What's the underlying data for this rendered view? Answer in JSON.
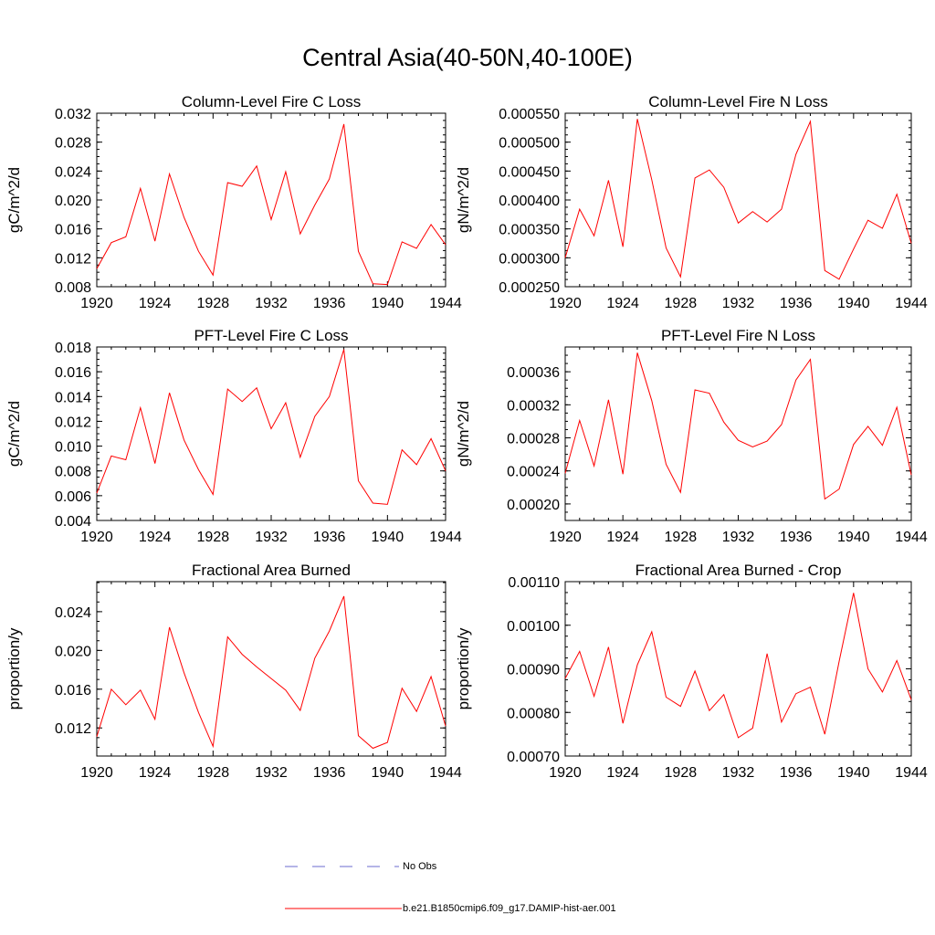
{
  "title": "Central Asia(40-50N,40-100E)",
  "line_color": "#ff0000",
  "legend": {
    "items": [
      {
        "label": "No Obs",
        "style": "dashed",
        "color": "#6b6bcf"
      },
      {
        "label": "b.e21.B1850cmip6.f09_g17.DAMIP-hist-aer.001",
        "style": "solid",
        "color": "#ff0000"
      }
    ]
  },
  "chart_data": [
    {
      "type": "line",
      "title": "Column-Level Fire C Loss",
      "ylabel": "gC/m^2/d",
      "x": [
        1920,
        1921,
        1922,
        1923,
        1924,
        1925,
        1926,
        1927,
        1928,
        1929,
        1930,
        1931,
        1932,
        1933,
        1934,
        1935,
        1936,
        1937,
        1938,
        1939,
        1940,
        1941,
        1942,
        1943,
        1944
      ],
      "values": [
        0.0105,
        0.0141,
        0.0149,
        0.0216,
        0.0143,
        0.0236,
        0.0176,
        0.0129,
        0.0096,
        0.0224,
        0.0219,
        0.0247,
        0.0173,
        0.0239,
        0.0153,
        0.0193,
        0.0229,
        0.0305,
        0.0129,
        0.0084,
        0.0083,
        0.0142,
        0.0133,
        0.0166,
        0.0138
      ],
      "xlim": [
        1920,
        1944
      ],
      "ylim": [
        0.008,
        0.032
      ],
      "xticks": [
        "1920",
        "1924",
        "1928",
        "1932",
        "1936",
        "1940",
        "1944"
      ],
      "yticks": [
        "0.008",
        "0.012",
        "0.016",
        "0.020",
        "0.024",
        "0.028",
        "0.032"
      ],
      "ytick_values": [
        0.008,
        0.012,
        0.016,
        0.02,
        0.024,
        0.028,
        0.032
      ]
    },
    {
      "type": "line",
      "title": "Column-Level Fire N Loss",
      "ylabel": "gN/m^2/d",
      "x": [
        1920,
        1921,
        1922,
        1923,
        1924,
        1925,
        1926,
        1927,
        1928,
        1929,
        1930,
        1931,
        1932,
        1933,
        1934,
        1935,
        1936,
        1937,
        1938,
        1939,
        1940,
        1941,
        1942,
        1943,
        1944
      ],
      "values": [
        0.0003,
        0.000384,
        0.000338,
        0.000434,
        0.000319,
        0.00054,
        0.000435,
        0.000317,
        0.000267,
        0.000438,
        0.000452,
        0.000422,
        0.00036,
        0.00038,
        0.000362,
        0.000384,
        0.000479,
        0.000536,
        0.000278,
        0.000263,
        0.000315,
        0.000365,
        0.000351,
        0.00041,
        0.000325
      ],
      "xlim": [
        1920,
        1944
      ],
      "ylim": [
        0.00025,
        0.00055
      ],
      "xticks": [
        "1920",
        "1924",
        "1928",
        "1932",
        "1936",
        "1940",
        "1944"
      ],
      "yticks": [
        "0.000250",
        "0.000300",
        "0.000350",
        "0.000400",
        "0.000450",
        "0.000500",
        "0.000550"
      ],
      "ytick_values": [
        0.00025,
        0.0003,
        0.00035,
        0.0004,
        0.00045,
        0.0005,
        0.00055
      ]
    },
    {
      "type": "line",
      "title": "PFT-Level Fire C Loss",
      "ylabel": "gC/m^2/d",
      "x": [
        1920,
        1921,
        1922,
        1923,
        1924,
        1925,
        1926,
        1927,
        1928,
        1929,
        1930,
        1931,
        1932,
        1933,
        1934,
        1935,
        1936,
        1937,
        1938,
        1939,
        1940,
        1941,
        1942,
        1943,
        1944
      ],
      "values": [
        0.0062,
        0.0092,
        0.0089,
        0.0131,
        0.0086,
        0.0143,
        0.0105,
        0.0081,
        0.0061,
        0.0146,
        0.0136,
        0.0147,
        0.0114,
        0.0135,
        0.0091,
        0.0124,
        0.014,
        0.0178,
        0.0072,
        0.0054,
        0.0053,
        0.0097,
        0.0085,
        0.0106,
        0.008
      ],
      "xlim": [
        1920,
        1944
      ],
      "ylim": [
        0.004,
        0.018
      ],
      "xticks": [
        "1920",
        "1924",
        "1928",
        "1932",
        "1936",
        "1940",
        "1944"
      ],
      "yticks": [
        "0.004",
        "0.006",
        "0.008",
        "0.010",
        "0.012",
        "0.014",
        "0.016",
        "0.018"
      ],
      "ytick_values": [
        0.004,
        0.006,
        0.008,
        0.01,
        0.012,
        0.014,
        0.016,
        0.018
      ]
    },
    {
      "type": "line",
      "title": "PFT-Level Fire N Loss",
      "ylabel": "gN/m^2/d",
      "x": [
        1920,
        1921,
        1922,
        1923,
        1924,
        1925,
        1926,
        1927,
        1928,
        1929,
        1930,
        1931,
        1932,
        1933,
        1934,
        1935,
        1936,
        1937,
        1938,
        1939,
        1940,
        1941,
        1942,
        1943,
        1944
      ],
      "values": [
        0.000237,
        0.000301,
        0.000246,
        0.000326,
        0.000236,
        0.000383,
        0.000325,
        0.000248,
        0.000214,
        0.000338,
        0.000334,
        0.000299,
        0.000277,
        0.000269,
        0.000276,
        0.000296,
        0.00035,
        0.000375,
        0.000206,
        0.000218,
        0.000272,
        0.000294,
        0.000271,
        0.000317,
        0.000235
      ],
      "xlim": [
        1920,
        1944
      ],
      "ylim": [
        0.00018,
        0.00039
      ],
      "xticks": [
        "1920",
        "1924",
        "1928",
        "1932",
        "1936",
        "1940",
        "1944"
      ],
      "yticks": [
        "0.00020",
        "0.00024",
        "0.00028",
        "0.00032",
        "0.00036"
      ],
      "ytick_values": [
        0.0002,
        0.00024,
        0.00028,
        0.00032,
        0.00036
      ]
    },
    {
      "type": "line",
      "title": "Fractional Area Burned",
      "ylabel": "proportion/y",
      "x": [
        1920,
        1921,
        1922,
        1923,
        1924,
        1925,
        1926,
        1927,
        1928,
        1929,
        1930,
        1931,
        1932,
        1933,
        1934,
        1935,
        1936,
        1937,
        1938,
        1939,
        1940,
        1941,
        1942,
        1943,
        1944
      ],
      "values": [
        0.0111,
        0.016,
        0.0144,
        0.0159,
        0.0129,
        0.0224,
        0.0177,
        0.0136,
        0.0101,
        0.0214,
        0.0196,
        0.0183,
        0.0171,
        0.0159,
        0.0138,
        0.0192,
        0.022,
        0.0256,
        0.0112,
        0.0099,
        0.0105,
        0.0161,
        0.0137,
        0.0173,
        0.0122
      ],
      "xlim": [
        1920,
        1944
      ],
      "ylim": [
        0.0091,
        0.0271
      ],
      "xticks": [
        "1920",
        "1924",
        "1928",
        "1932",
        "1936",
        "1940",
        "1944"
      ],
      "yticks": [
        "0.012",
        "0.016",
        "0.020",
        "0.024"
      ],
      "ytick_values": [
        0.012,
        0.016,
        0.02,
        0.024
      ]
    },
    {
      "type": "line",
      "title": "Fractional Area Burned - Crop",
      "ylabel": "proportion/y",
      "x": [
        1920,
        1921,
        1922,
        1923,
        1924,
        1925,
        1926,
        1927,
        1928,
        1929,
        1930,
        1931,
        1932,
        1933,
        1934,
        1935,
        1936,
        1937,
        1938,
        1939,
        1940,
        1941,
        1942,
        1943,
        1944
      ],
      "values": [
        0.000878,
        0.00094,
        0.000837,
        0.00095,
        0.000775,
        0.000909,
        0.000985,
        0.000835,
        0.000814,
        0.000895,
        0.000804,
        0.000841,
        0.000742,
        0.000764,
        0.000935,
        0.000778,
        0.000843,
        0.000858,
        0.00075,
        0.000917,
        0.001074,
        0.0009,
        0.000847,
        0.000919,
        0.000829
      ],
      "xlim": [
        1920,
        1944
      ],
      "ylim": [
        0.0007,
        0.0011
      ],
      "xticks": [
        "1920",
        "1924",
        "1928",
        "1932",
        "1936",
        "1940",
        "1944"
      ],
      "yticks": [
        "0.00070",
        "0.00080",
        "0.00090",
        "0.00100",
        "0.00110"
      ],
      "ytick_values": [
        0.0007,
        0.0008,
        0.0009,
        0.001,
        0.0011
      ]
    }
  ]
}
